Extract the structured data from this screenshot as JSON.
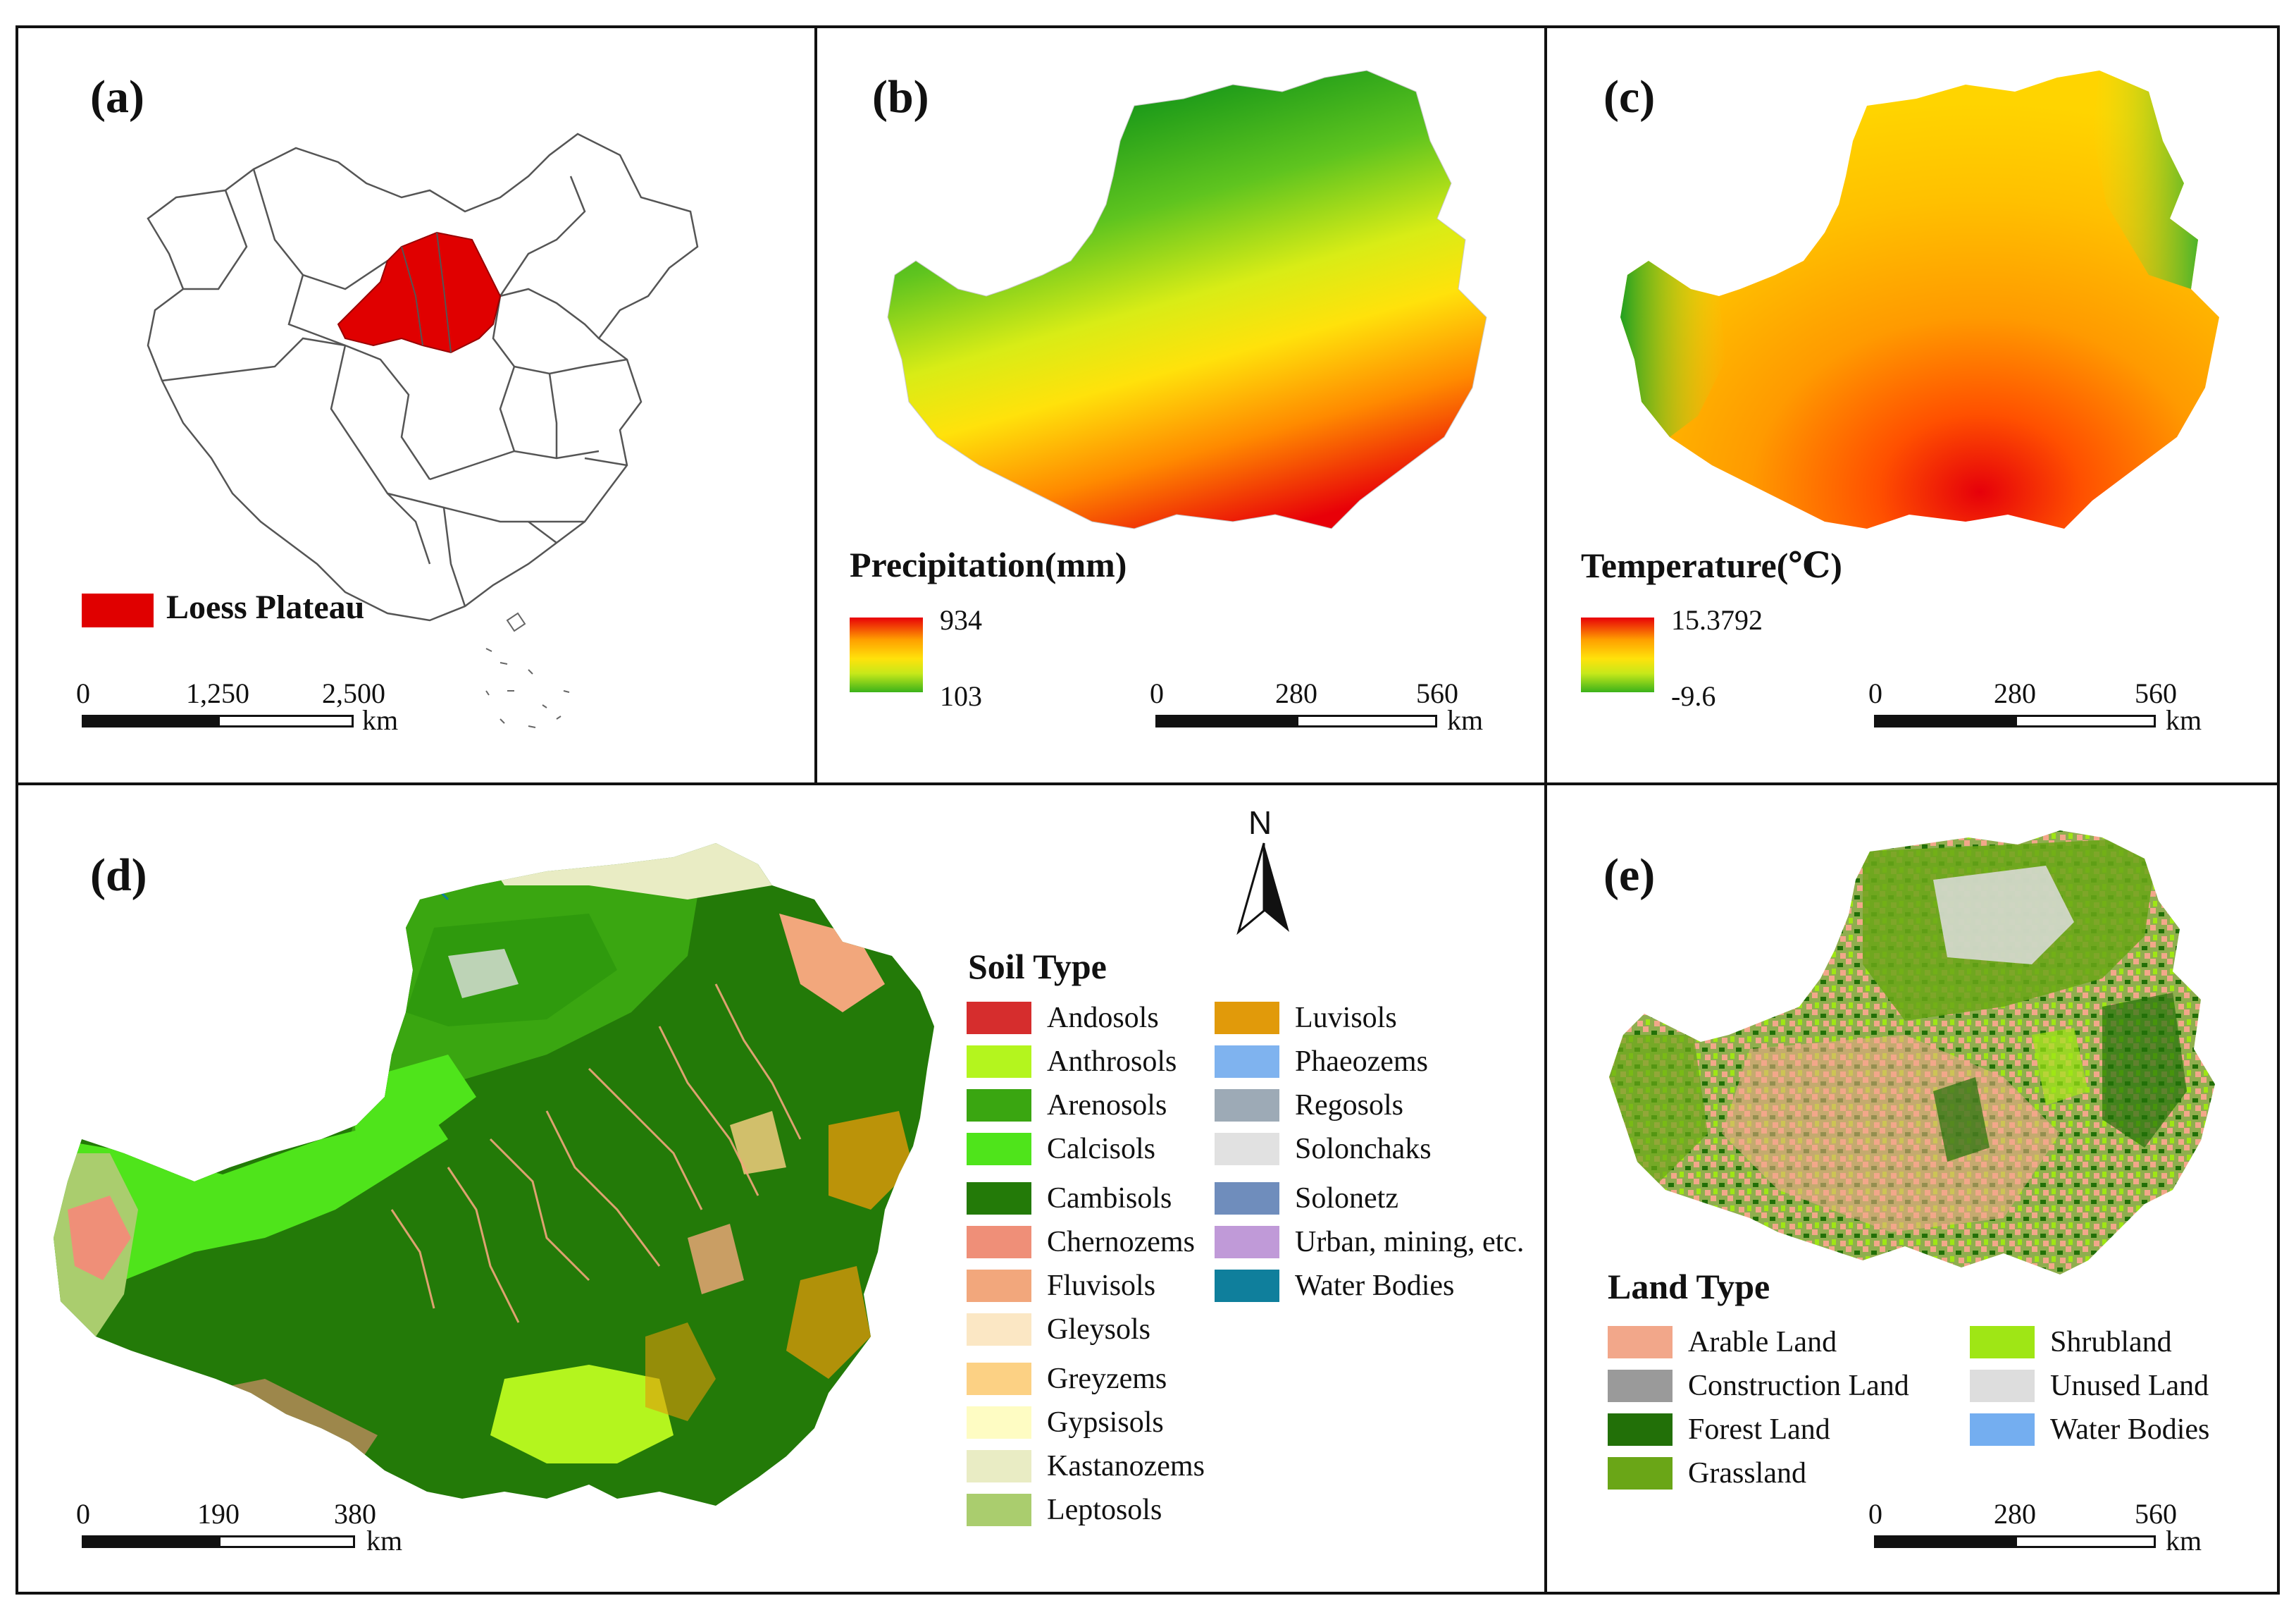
{
  "panels": {
    "a": {
      "label": "(a)",
      "legend": "Loess Plateau",
      "scale": {
        "ticks": [
          "0",
          "1,250",
          "2,500"
        ],
        "unit": "km"
      }
    },
    "b": {
      "label": "(b)",
      "title": "Precipitation(mm)",
      "max": "934",
      "min": "103",
      "scale": {
        "ticks": [
          "0",
          "280",
          "560"
        ],
        "unit": "km"
      }
    },
    "c": {
      "label": "(c)",
      "title": "Temperature(℃)",
      "max": "15.3792",
      "min": "-9.6",
      "scale": {
        "ticks": [
          "0",
          "280",
          "560"
        ],
        "unit": "km"
      }
    },
    "d": {
      "label": "(d)",
      "north": "N",
      "title": "Soil Type",
      "items": [
        {
          "label": "Andosols",
          "color": "#d62d2d"
        },
        {
          "label": "Anthrosols",
          "color": "#b4f51e"
        },
        {
          "label": "Arenosols",
          "color": "#3aa611"
        },
        {
          "label": "Calcisols",
          "color": "#4fe41b"
        },
        {
          "label": "Cambisols",
          "color": "#237a08"
        },
        {
          "label": "Chernozems",
          "color": "#ef8f78"
        },
        {
          "label": "Fluvisols",
          "color": "#f2a77c"
        },
        {
          "label": "Gleysols",
          "color": "#fbe7c4"
        },
        {
          "label": "Greyzems",
          "color": "#fcd184"
        },
        {
          "label": "Gypsisols",
          "color": "#fefcc3"
        },
        {
          "label": "Kastanozems",
          "color": "#e9ecc4"
        },
        {
          "label": "Leptosols",
          "color": "#aacd6e"
        },
        {
          "label": "Luvisols",
          "color": "#e19a0a"
        },
        {
          "label": "Phaeozems",
          "color": "#7fb3ef"
        },
        {
          "label": "Regosols",
          "color": "#9daab6"
        },
        {
          "label": "Solonchaks",
          "color": "#e1e1e1"
        },
        {
          "label": "Solonetz",
          "color": "#6f8dbc"
        },
        {
          "label": "Urban, mining, etc.",
          "color": "#c09ad8"
        },
        {
          "label": "Water Bodies",
          "color": "#0f7f9c"
        }
      ],
      "scale": {
        "ticks": [
          "0",
          "190",
          "380"
        ],
        "unit": "km"
      }
    },
    "e": {
      "label": "(e)",
      "title": "Land Type",
      "items": [
        {
          "label": "Arable Land",
          "color": "#f2a78a"
        },
        {
          "label": "Construction Land",
          "color": "#9a9a9a"
        },
        {
          "label": "Forest Land",
          "color": "#227008"
        },
        {
          "label": "Grassland",
          "color": "#6aa617"
        },
        {
          "label": "Shrubland",
          "color": "#9fe615"
        },
        {
          "label": "Unused Land",
          "color": "#dddddd"
        },
        {
          "label": "Water Bodies",
          "color": "#74aef0"
        }
      ],
      "scale": {
        "ticks": [
          "0",
          "280",
          "560"
        ],
        "unit": "km"
      }
    }
  }
}
